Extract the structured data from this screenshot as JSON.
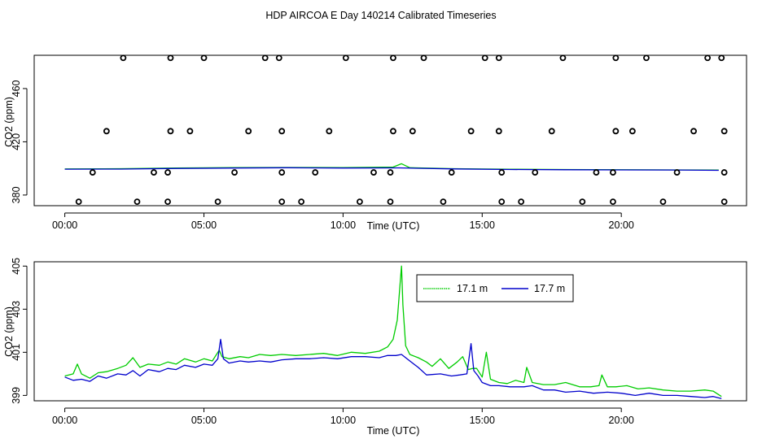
{
  "figure": {
    "title": "HDP AIRCOA E  Day 140214  Calibrated Timeseries"
  },
  "chart_data": [
    {
      "type": "scatter",
      "xlabel": "Time (UTC)",
      "ylabel": "CO2 (ppm)",
      "xlim": [
        -1.1,
        24.5
      ],
      "ylim": [
        372,
        485
      ],
      "xticks": [
        0,
        5,
        10,
        15,
        20
      ],
      "xtick_labels": [
        "00:00",
        "05:00",
        "10:00",
        "15:00",
        "20:00"
      ],
      "yticks": [
        380,
        420,
        460
      ],
      "ytick_labels": [
        "380",
        "420",
        "460"
      ],
      "grid": false,
      "series": [
        {
          "color": "#00cc00",
          "points": [
            [
              0,
              399.6
            ],
            [
              2,
              399.8
            ],
            [
              4,
              400.3
            ],
            [
              6,
              400.6
            ],
            [
              8,
              400.7
            ],
            [
              10,
              400.6
            ],
            [
              11.8,
              401.0
            ],
            [
              12.1,
              403.5
            ],
            [
              12.4,
              400.5
            ],
            [
              14,
              399.8
            ],
            [
              16,
              399.4
            ],
            [
              18,
              399.2
            ],
            [
              20,
              399.0
            ],
            [
              22,
              398.9
            ],
            [
              23.5,
              398.8
            ]
          ]
        },
        {
          "color": "#0000cc",
          "points": [
            [
              0,
              399.4
            ],
            [
              2,
              399.5
            ],
            [
              4,
              400.0
            ],
            [
              6,
              400.3
            ],
            [
              8,
              400.5
            ],
            [
              10,
              400.3
            ],
            [
              12,
              400.4
            ],
            [
              14,
              399.6
            ],
            [
              16,
              399.2
            ],
            [
              18,
              399.0
            ],
            [
              20,
              398.9
            ],
            [
              22,
              398.8
            ],
            [
              23.5,
              398.6
            ]
          ]
        },
        {
          "marker": "circle",
          "color": "#000000",
          "points": [
            [
              2.1,
              483
            ],
            [
              3.8,
              483
            ],
            [
              5.0,
              483
            ],
            [
              7.2,
              483
            ],
            [
              7.7,
              483
            ],
            [
              10.1,
              483
            ],
            [
              11.8,
              483
            ],
            [
              12.9,
              483
            ],
            [
              15.1,
              483
            ],
            [
              15.6,
              483
            ],
            [
              17.9,
              483
            ],
            [
              19.8,
              483
            ],
            [
              20.9,
              483
            ],
            [
              23.1,
              483
            ],
            [
              23.6,
              483
            ],
            [
              1.5,
              428
            ],
            [
              3.8,
              428
            ],
            [
              4.5,
              428
            ],
            [
              6.6,
              428
            ],
            [
              7.8,
              428
            ],
            [
              9.5,
              428
            ],
            [
              11.8,
              428
            ],
            [
              12.5,
              428
            ],
            [
              14.6,
              428
            ],
            [
              15.6,
              428
            ],
            [
              17.5,
              428
            ],
            [
              19.8,
              428
            ],
            [
              20.4,
              428
            ],
            [
              22.6,
              428
            ],
            [
              23.7,
              428
            ],
            [
              1.0,
              397
            ],
            [
              3.2,
              397
            ],
            [
              3.7,
              397
            ],
            [
              6.1,
              397
            ],
            [
              7.8,
              397
            ],
            [
              9.0,
              397
            ],
            [
              11.1,
              397
            ],
            [
              11.7,
              397
            ],
            [
              13.9,
              397
            ],
            [
              15.7,
              397
            ],
            [
              16.9,
              397
            ],
            [
              19.1,
              397
            ],
            [
              19.7,
              397
            ],
            [
              22.0,
              397
            ],
            [
              23.7,
              397
            ],
            [
              0.5,
              375
            ],
            [
              2.6,
              375
            ],
            [
              3.7,
              375
            ],
            [
              5.5,
              375
            ],
            [
              7.8,
              375
            ],
            [
              8.5,
              375
            ],
            [
              10.6,
              375
            ],
            [
              11.7,
              375
            ],
            [
              13.6,
              375
            ],
            [
              15.7,
              375
            ],
            [
              16.4,
              375
            ],
            [
              18.6,
              375
            ],
            [
              19.7,
              375
            ],
            [
              21.5,
              375
            ],
            [
              23.7,
              375
            ]
          ]
        }
      ]
    },
    {
      "type": "line",
      "xlabel": "Time (UTC)",
      "ylabel": "CO2 (ppm)",
      "xlim": [
        -1.1,
        24.5
      ],
      "ylim": [
        398.75,
        405.2
      ],
      "xticks": [
        0,
        5,
        10,
        15,
        20
      ],
      "xtick_labels": [
        "00:00",
        "05:00",
        "10:00",
        "15:00",
        "20:00"
      ],
      "yticks": [
        399,
        401,
        403,
        405
      ],
      "ytick_labels": [
        "399",
        "401",
        "403",
        "405"
      ],
      "grid": false,
      "legend": "top-center",
      "series": [
        {
          "name": "17.1 m",
          "color": "#00cc00",
          "x": [
            0,
            0.3,
            0.45,
            0.6,
            0.9,
            1.2,
            1.5,
            1.9,
            2.2,
            2.45,
            2.7,
            3.0,
            3.4,
            3.7,
            4.0,
            4.3,
            4.7,
            5.0,
            5.3,
            5.55,
            5.65,
            5.9,
            6.3,
            6.6,
            7.0,
            7.4,
            7.8,
            8.3,
            8.8,
            9.3,
            9.8,
            10.3,
            10.8,
            11.3,
            11.6,
            11.8,
            11.95,
            12.05,
            12.1,
            12.15,
            12.25,
            12.4,
            12.7,
            13.0,
            13.2,
            13.5,
            13.8,
            14.1,
            14.3,
            14.5,
            14.65,
            14.8,
            15.0,
            15.15,
            15.3,
            15.6,
            15.9,
            16.2,
            16.5,
            16.6,
            16.8,
            17.2,
            17.6,
            18.0,
            18.5,
            18.9,
            19.2,
            19.3,
            19.5,
            19.8,
            20.2,
            20.6,
            21.0,
            21.5,
            22.0,
            22.5,
            23.0,
            23.3,
            23.6
          ],
          "values": [
            399.9,
            400.0,
            400.45,
            400.0,
            399.8,
            400.05,
            400.1,
            400.25,
            400.4,
            400.75,
            400.3,
            400.45,
            400.4,
            400.55,
            400.45,
            400.7,
            400.55,
            400.7,
            400.6,
            401.1,
            400.8,
            400.7,
            400.8,
            400.75,
            400.9,
            400.85,
            400.9,
            400.85,
            400.9,
            400.95,
            400.85,
            401.0,
            400.95,
            401.05,
            401.25,
            401.6,
            402.5,
            404.2,
            405.0,
            403.2,
            401.3,
            400.9,
            400.75,
            400.55,
            400.35,
            400.7,
            400.25,
            400.55,
            400.8,
            400.2,
            400.25,
            400.25,
            399.85,
            401.0,
            399.75,
            399.6,
            399.55,
            399.7,
            399.6,
            400.3,
            399.6,
            399.5,
            399.5,
            399.6,
            399.4,
            399.4,
            399.45,
            399.95,
            399.4,
            399.4,
            399.45,
            399.3,
            399.35,
            399.25,
            399.2,
            399.2,
            399.25,
            399.2,
            398.95
          ]
        },
        {
          "name": "17.7 m",
          "color": "#0000cc",
          "x": [
            0,
            0.3,
            0.6,
            0.9,
            1.2,
            1.5,
            1.9,
            2.2,
            2.45,
            2.7,
            3.0,
            3.4,
            3.7,
            4.0,
            4.3,
            4.7,
            5.0,
            5.3,
            5.5,
            5.6,
            5.7,
            5.9,
            6.3,
            6.6,
            7.0,
            7.4,
            7.8,
            8.3,
            8.8,
            9.3,
            9.8,
            10.3,
            10.8,
            11.3,
            11.6,
            11.9,
            12.1,
            12.4,
            12.7,
            13.0,
            13.5,
            13.9,
            14.2,
            14.45,
            14.6,
            14.7,
            14.85,
            15.0,
            15.3,
            15.6,
            16.0,
            16.5,
            16.8,
            17.2,
            17.6,
            18.0,
            18.5,
            19.0,
            19.5,
            20.0,
            20.5,
            21.0,
            21.5,
            22.0,
            22.5,
            23.0,
            23.3,
            23.6
          ],
          "values": [
            399.85,
            399.7,
            399.75,
            399.65,
            399.9,
            399.8,
            400.0,
            399.95,
            400.15,
            399.9,
            400.2,
            400.1,
            400.25,
            400.2,
            400.4,
            400.3,
            400.45,
            400.4,
            400.7,
            401.6,
            400.7,
            400.5,
            400.6,
            400.55,
            400.6,
            400.55,
            400.65,
            400.7,
            400.7,
            400.75,
            400.7,
            400.8,
            400.8,
            400.75,
            400.85,
            400.85,
            400.9,
            400.6,
            400.3,
            399.95,
            400.0,
            399.9,
            399.95,
            400.0,
            401.4,
            400.15,
            399.9,
            399.6,
            399.45,
            399.45,
            399.4,
            399.4,
            399.45,
            399.25,
            399.25,
            399.15,
            399.2,
            399.1,
            399.15,
            399.1,
            399.0,
            399.1,
            399.0,
            399.0,
            398.95,
            398.9,
            398.95,
            398.85
          ]
        }
      ]
    }
  ]
}
